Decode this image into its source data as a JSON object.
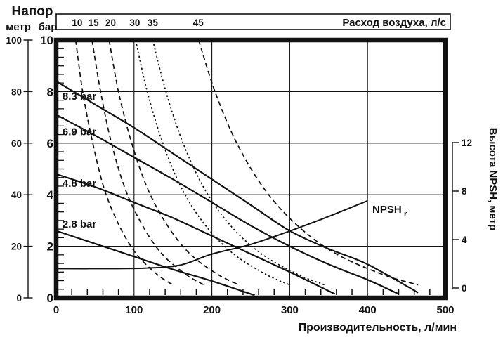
{
  "header": {
    "napor": "Напор",
    "metr": "метр",
    "bar": "бар"
  },
  "axes": {
    "top_title": "Расход воздуха, л/с",
    "bottom_title": "Производительность, л/мин",
    "right_title": "Высота NPSH, метр",
    "npsh_label": "NPSH",
    "npsh_sub": "r"
  },
  "colors": {
    "ink": "#111111",
    "background": "#ffffff"
  },
  "chart_data": {
    "type": "line",
    "title": "",
    "grid": true,
    "legend": "inline-labels",
    "x_axis": {
      "label": "Производительность, л/мин",
      "min": 0,
      "max": 500,
      "major_ticks": [
        0,
        100,
        200,
        300,
        400,
        500
      ],
      "minor_step": 20
    },
    "y_axis_meters": {
      "label": "метр",
      "min": 0,
      "max": 100,
      "major_ticks": [
        100,
        80,
        60,
        40,
        20,
        0
      ]
    },
    "y_axis_bar": {
      "label": "бар",
      "min": 0,
      "max": 10,
      "major_ticks": [
        10,
        8,
        6,
        4,
        2,
        0
      ]
    },
    "y_axis_npsh": {
      "label": "Высота NPSH, метр",
      "min": 0,
      "max": 12,
      "ticks": [
        12,
        8,
        4,
        0
      ]
    },
    "top_axis": {
      "label": "Расход воздуха, л/с"
    },
    "pressure_curves": [
      {
        "name": "8.3 bar",
        "label_q": 8,
        "label_h": 78.2,
        "points": [
          [
            0,
            84
          ],
          [
            50,
            75
          ],
          [
            100,
            66
          ],
          [
            150,
            56
          ],
          [
            200,
            46
          ],
          [
            250,
            36
          ],
          [
            300,
            26
          ],
          [
            350,
            19
          ],
          [
            400,
            13
          ],
          [
            465,
            2
          ]
        ]
      },
      {
        "name": "6.9 bar",
        "label_q": 8,
        "label_h": 64.5,
        "points": [
          [
            0,
            71
          ],
          [
            50,
            63
          ],
          [
            100,
            54.5
          ],
          [
            150,
            46
          ],
          [
            200,
            37
          ],
          [
            250,
            28
          ],
          [
            300,
            20
          ],
          [
            350,
            13
          ],
          [
            400,
            7
          ],
          [
            440,
            1.5
          ]
        ]
      },
      {
        "name": "4.8 bar",
        "label_q": 8,
        "label_h": 44.4,
        "points": [
          [
            0,
            48
          ],
          [
            50,
            43
          ],
          [
            100,
            37
          ],
          [
            150,
            31
          ],
          [
            200,
            24
          ],
          [
            250,
            17
          ],
          [
            300,
            10
          ],
          [
            358,
            1.5
          ]
        ]
      },
      {
        "name": "2.8 bar",
        "label_q": 8,
        "label_h": 28.6,
        "points": [
          [
            0,
            26
          ],
          [
            50,
            21
          ],
          [
            100,
            16
          ],
          [
            150,
            11
          ],
          [
            200,
            6.5
          ],
          [
            255,
            1
          ]
        ]
      }
    ],
    "npsh_curve": {
      "name": "NPSHr",
      "axis": "right",
      "label_q": 406,
      "label_n": 6.5,
      "points": [
        [
          0,
          1.6
        ],
        [
          60,
          1.6
        ],
        [
          120,
          1.65
        ],
        [
          160,
          1.9
        ],
        [
          200,
          2.8
        ],
        [
          250,
          3.6
        ],
        [
          300,
          4.7
        ],
        [
          350,
          5.9
        ],
        [
          400,
          7.2
        ]
      ]
    },
    "air_curves": [
      {
        "label": "10",
        "label_q": 27,
        "dash": "long",
        "points": [
          [
            25,
            100
          ],
          [
            34,
            80
          ],
          [
            47,
            60
          ],
          [
            62,
            42
          ],
          [
            81,
            28
          ],
          [
            103,
            17
          ],
          [
            130,
            9
          ],
          [
            150,
            5
          ]
        ]
      },
      {
        "label": "15",
        "label_q": 48,
        "dash": "long",
        "points": [
          [
            46,
            100
          ],
          [
            57,
            80
          ],
          [
            71,
            60
          ],
          [
            89,
            42
          ],
          [
            111,
            28
          ],
          [
            136,
            17
          ],
          [
            167,
            9
          ],
          [
            190,
            5
          ]
        ]
      },
      {
        "label": "20",
        "label_q": 70,
        "dash": "long",
        "points": [
          [
            68,
            100
          ],
          [
            80,
            80
          ],
          [
            97,
            60
          ],
          [
            118,
            42
          ],
          [
            143,
            28
          ],
          [
            172,
            17
          ],
          [
            208,
            9
          ],
          [
            235,
            5
          ]
        ]
      },
      {
        "label": "30",
        "label_q": 101,
        "dash": "dot",
        "points": [
          [
            102,
            100
          ],
          [
            117,
            80
          ],
          [
            137,
            60
          ],
          [
            162,
            42
          ],
          [
            192,
            28
          ],
          [
            228,
            17
          ],
          [
            270,
            9
          ],
          [
            300,
            5
          ]
        ]
      },
      {
        "label": "35",
        "label_q": 124,
        "dash": "dot",
        "points": [
          [
            124,
            100
          ],
          [
            141,
            80
          ],
          [
            163,
            60
          ],
          [
            191,
            42
          ],
          [
            224,
            28
          ],
          [
            264,
            17
          ],
          [
            311,
            9
          ],
          [
            345,
            5
          ]
        ]
      },
      {
        "label": "45",
        "label_q": 182.5,
        "dash": "long",
        "points": [
          [
            183,
            100
          ],
          [
            204,
            80
          ],
          [
            232,
            60
          ],
          [
            268,
            42
          ],
          [
            310,
            28
          ],
          [
            360,
            17
          ],
          [
            420,
            9
          ],
          [
            465,
            5
          ]
        ]
      }
    ]
  }
}
